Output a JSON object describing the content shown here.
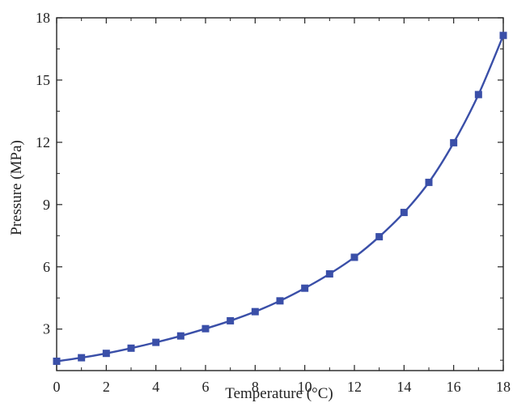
{
  "chart_data": {
    "type": "line",
    "title": "",
    "xlabel": "Temperature (°C)",
    "ylabel": "Pressure (MPa)",
    "xlim": [
      0,
      18
    ],
    "ylim": [
      1.0,
      18
    ],
    "xticks": [
      0,
      2,
      4,
      6,
      8,
      10,
      12,
      14,
      16,
      18
    ],
    "yticks": [
      3,
      6,
      9,
      12,
      15,
      18
    ],
    "grid": false,
    "legend": "none",
    "marker": "square",
    "colors": {
      "series": "#3a4fa8",
      "axis": "#222222"
    },
    "series": [
      {
        "x": [
          0,
          1,
          2,
          3,
          4,
          5,
          6,
          7,
          8,
          9,
          10,
          11,
          12,
          13,
          14,
          15,
          16,
          17,
          18
        ],
        "y": [
          1.45,
          1.62,
          1.83,
          2.08,
          2.36,
          2.67,
          3.02,
          3.4,
          3.84,
          4.36,
          4.97,
          5.66,
          6.46,
          7.45,
          8.62,
          10.07,
          11.98,
          14.3,
          17.15
        ]
      }
    ]
  }
}
